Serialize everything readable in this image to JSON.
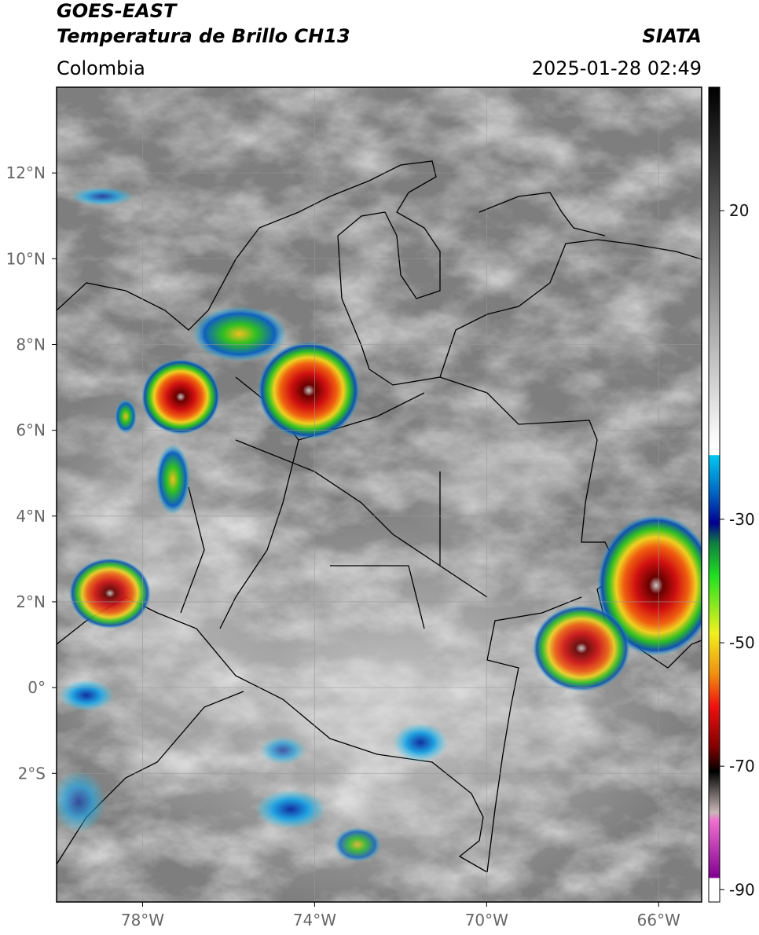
{
  "header": {
    "title": "GOES-EAST",
    "subtitle": "Temperatura de Brillo CH13",
    "region": "Colombia",
    "source": "SIATA",
    "timestamp": "2025-01-28 02:49"
  },
  "map": {
    "lon_range": [
      -80,
      -65
    ],
    "lat_range": [
      -5,
      14
    ],
    "grid": true,
    "lon_ticks": [
      {
        "value": -78,
        "label": "78°W"
      },
      {
        "value": -74,
        "label": "74°W"
      },
      {
        "value": -70,
        "label": "70°W"
      },
      {
        "value": -66,
        "label": "66°W"
      }
    ],
    "lat_ticks": [
      {
        "value": 12,
        "label": "12°N"
      },
      {
        "value": 10,
        "label": "10°N"
      },
      {
        "value": 8,
        "label": "8°N"
      },
      {
        "value": 6,
        "label": "6°N"
      },
      {
        "value": 4,
        "label": "4°N"
      },
      {
        "value": 2,
        "label": "2°N"
      },
      {
        "value": 0,
        "label": "0°"
      },
      {
        "value": -2,
        "label": "2°S"
      }
    ]
  },
  "colorbar": {
    "range": [
      -92,
      40
    ],
    "ticks": [
      20,
      -30,
      -50,
      -70,
      -90
    ]
  }
}
